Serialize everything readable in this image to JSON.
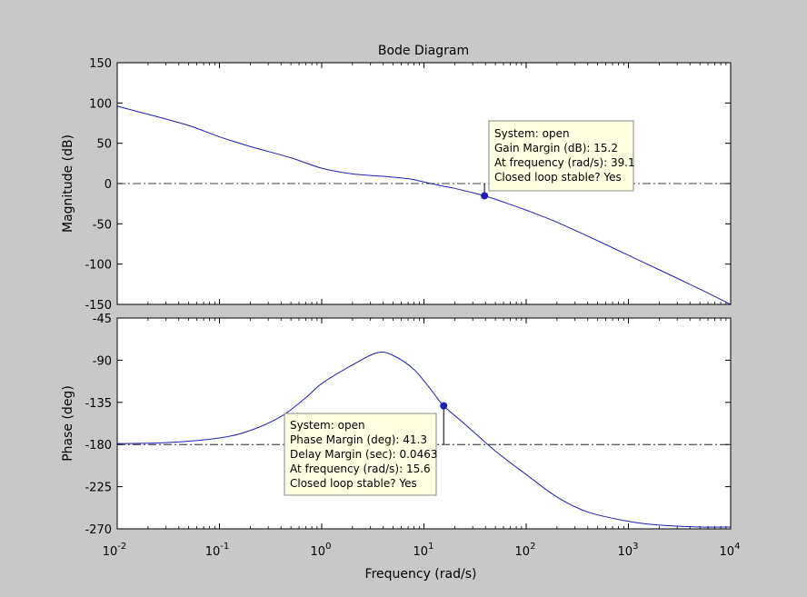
{
  "figure": {
    "background": "#c8c8c8",
    "axes_background": "#ffffff",
    "line_color": "#1f1fb4"
  },
  "chart_data": {
    "type": "line",
    "title": "Bode Diagram",
    "xlabel": "Frequency  (rad/s)",
    "xscale": "log",
    "xlim": [
      0.01,
      10000
    ],
    "x_ticks": [
      {
        "base": "10",
        "exp": "-2"
      },
      {
        "base": "10",
        "exp": "-1"
      },
      {
        "base": "10",
        "exp": "0"
      },
      {
        "base": "10",
        "exp": "1"
      },
      {
        "base": "10",
        "exp": "2"
      },
      {
        "base": "10",
        "exp": "3"
      },
      {
        "base": "10",
        "exp": "4"
      }
    ],
    "grid": false,
    "magnitude": {
      "ylabel": "Magnitude (dB)",
      "ylim": [
        -150,
        150
      ],
      "yticks": [
        150,
        100,
        50,
        0,
        -50,
        -100,
        -150
      ],
      "reference_line": 0,
      "series": [
        {
          "name": "open",
          "x": [
            0.01,
            0.02,
            0.05,
            0.1,
            0.2,
            0.5,
            1,
            2,
            4,
            7,
            10,
            15,
            20,
            39.1,
            60,
            100,
            200,
            500,
            1000,
            2000,
            5000,
            10000
          ],
          "y": [
            96,
            86,
            72,
            58,
            46,
            32,
            19,
            12,
            9,
            6,
            2,
            -3,
            -6,
            -15.2,
            -23,
            -33,
            -48,
            -71,
            -89,
            -107,
            -131,
            -150
          ]
        }
      ],
      "marker": {
        "x": 39.1,
        "y": -15.2
      },
      "datatip": {
        "lines": [
          "System: open",
          "Gain Margin (dB): 15.2",
          "At frequency (rad/s): 39.1",
          "Closed loop stable? Yes"
        ]
      }
    },
    "phase": {
      "ylabel": "Phase (deg)",
      "ylim": [
        -270,
        -45
      ],
      "yticks": [
        -45,
        -90,
        -135,
        -180,
        -225,
        -270
      ],
      "reference_line": -180,
      "series": [
        {
          "name": "open",
          "x": [
            0.01,
            0.03,
            0.1,
            0.2,
            0.4,
            0.7,
            1,
            2,
            3.5,
            5,
            8,
            12,
            15.6,
            25,
            50,
            100,
            200,
            400,
            1000,
            2000,
            5000,
            10000
          ],
          "y": [
            -179,
            -178,
            -173,
            -165,
            -150,
            -130,
            -115,
            -95,
            -82,
            -85,
            -100,
            -123,
            -138.7,
            -158,
            -187,
            -212,
            -236,
            -252,
            -262,
            -266,
            -268,
            -268
          ]
        }
      ],
      "marker": {
        "x": 15.6,
        "y": -138.7
      },
      "datatip": {
        "lines": [
          "System: open",
          "Phase Margin (deg): 41.3",
          "Delay Margin (sec): 0.0463",
          "At frequency (rad/s): 15.6",
          "Closed loop stable? Yes"
        ]
      }
    }
  }
}
